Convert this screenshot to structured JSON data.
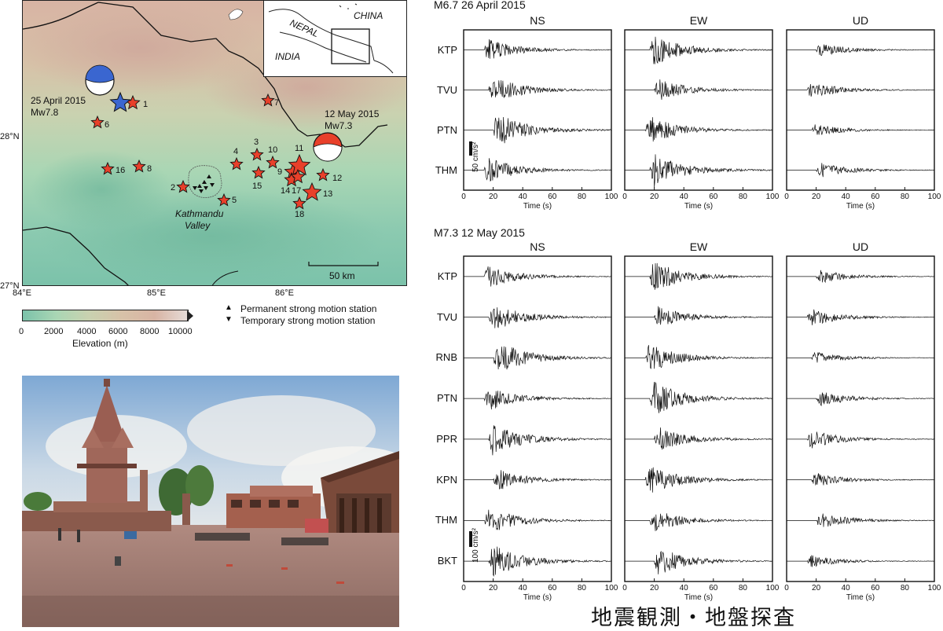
{
  "map": {
    "coords": {
      "lat_28": "28°N",
      "lat_27": "27°N",
      "lon_84": "84°E",
      "lon_85": "85°E",
      "lon_86": "86°E"
    },
    "inset": {
      "china": "CHINA",
      "nepal": "NEPAL",
      "india": "INDIA"
    },
    "events": [
      {
        "date": "25 April 2015",
        "mag": "Mw7.8",
        "color": "#3a66d0"
      },
      {
        "date": "12 May 2015",
        "mag": "Mw7.3",
        "color": "#e8402a"
      }
    ],
    "aftershock_numbers": [
      "1",
      "2",
      "3",
      "4",
      "5",
      "6",
      "7",
      "8",
      "9",
      "10",
      "11",
      "12",
      "13",
      "14",
      "15",
      "16",
      "17",
      "18"
    ],
    "valley_label_1": "Kathmandu",
    "valley_label_2": "Valley",
    "scale_label": "50 km",
    "star_color": "#e8402a"
  },
  "legend": {
    "permanent": "Permanent strong motion station",
    "temporary": "Temporary strong motion station",
    "colorbar_ticks": [
      "0",
      "2000",
      "4000",
      "6000",
      "8000",
      "10000"
    ],
    "colorbar_label": "Elevation (m)"
  },
  "seismo": {
    "panel1": {
      "title": "M6.7 26 April 2015",
      "components": [
        "NS",
        "EW",
        "UD"
      ],
      "stations": [
        "KTP",
        "TVU",
        "PTN",
        "THM"
      ],
      "scale_label": "50 cm/s²"
    },
    "panel2": {
      "title": "M7.3 12 May 2015",
      "components": [
        "NS",
        "EW",
        "UD"
      ],
      "stations": [
        "KTP",
        "TVU",
        "RNB",
        "PTN",
        "PPR",
        "KPN",
        "THM",
        "BKT"
      ],
      "scale_label": "100 cm/s²"
    },
    "time_ticks": [
      "0",
      "20",
      "40",
      "60",
      "80",
      "100"
    ],
    "time_label": "Time (s)"
  },
  "footer": {
    "title": "地震観測・地盤探査"
  }
}
